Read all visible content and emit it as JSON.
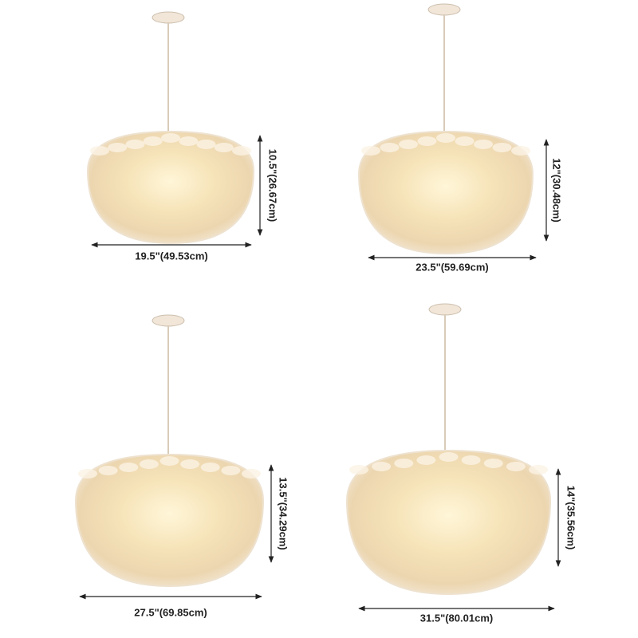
{
  "lamps": [
    {
      "height": "10.5\"(26.67cm)",
      "width": "19.5\"(49.53cm)"
    },
    {
      "height": "12\"(30.48cm)",
      "width": "23.5\"(59.69cm)"
    },
    {
      "height": "13.5\"(34.29cm)",
      "width": "27.5\"(69.85cm)"
    },
    {
      "height": "14\"(35.56cm)",
      "width": "31.5\"(80.01cm)"
    }
  ]
}
